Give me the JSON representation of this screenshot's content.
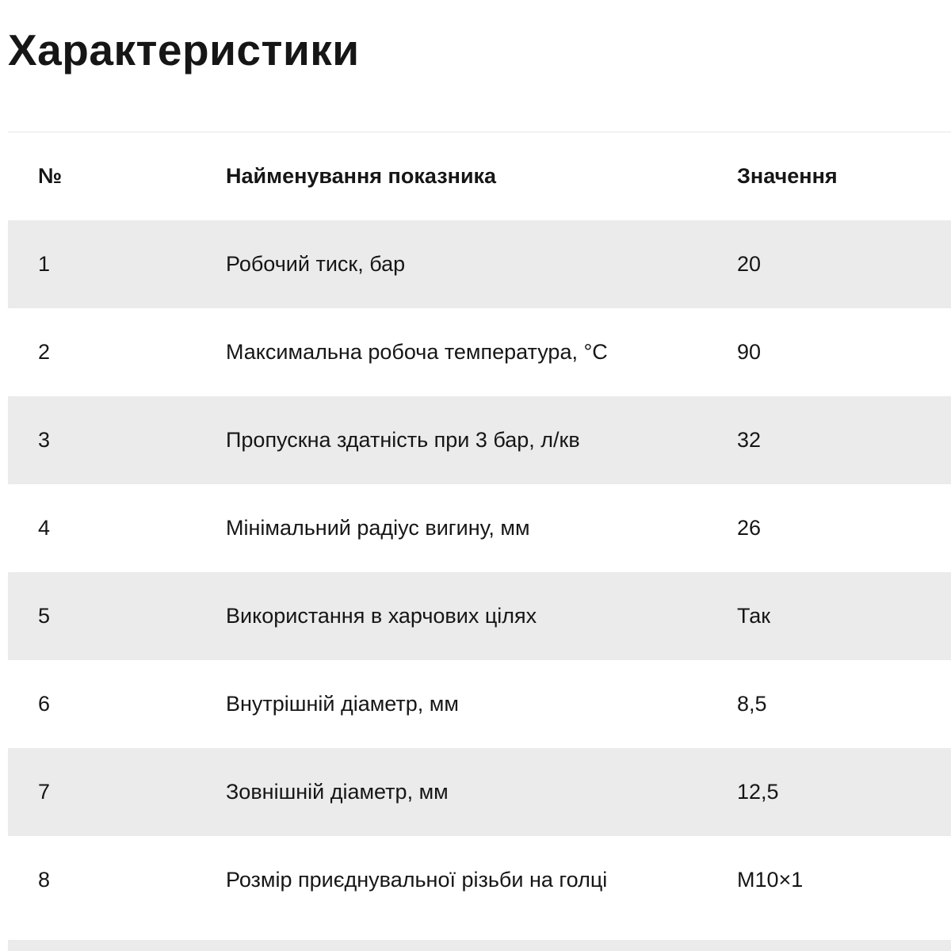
{
  "page": {
    "title": "Характеристики"
  },
  "colors": {
    "stripe": "#ebebeb",
    "text": "#161616",
    "border": "#e8e8e8"
  },
  "table": {
    "columns": [
      {
        "label": "№"
      },
      {
        "label": "Найменування показника"
      },
      {
        "label": "Значення"
      }
    ],
    "rows": [
      {
        "num": "1",
        "name": "Робочий тиск, бар",
        "value": "20"
      },
      {
        "num": "2",
        "name": "Максимальна робоча температура, °С",
        "value": "90"
      },
      {
        "num": "3",
        "name": "Пропускна здатність при 3 бар, л/кв",
        "value": "32"
      },
      {
        "num": "4",
        "name": "Мінімальний радіус вигину, мм",
        "value": "26"
      },
      {
        "num": "5",
        "name": "Використання в харчових цілях",
        "value": "Так"
      },
      {
        "num": "6",
        "name": "Внутрішній діаметр, мм",
        "value": "8,5"
      },
      {
        "num": "7",
        "name": "Зовнішній діаметр, мм",
        "value": "12,5"
      },
      {
        "num": "8",
        "name": "Розмір приєднувальної різьби на голці",
        "value": "M10×1"
      }
    ]
  }
}
